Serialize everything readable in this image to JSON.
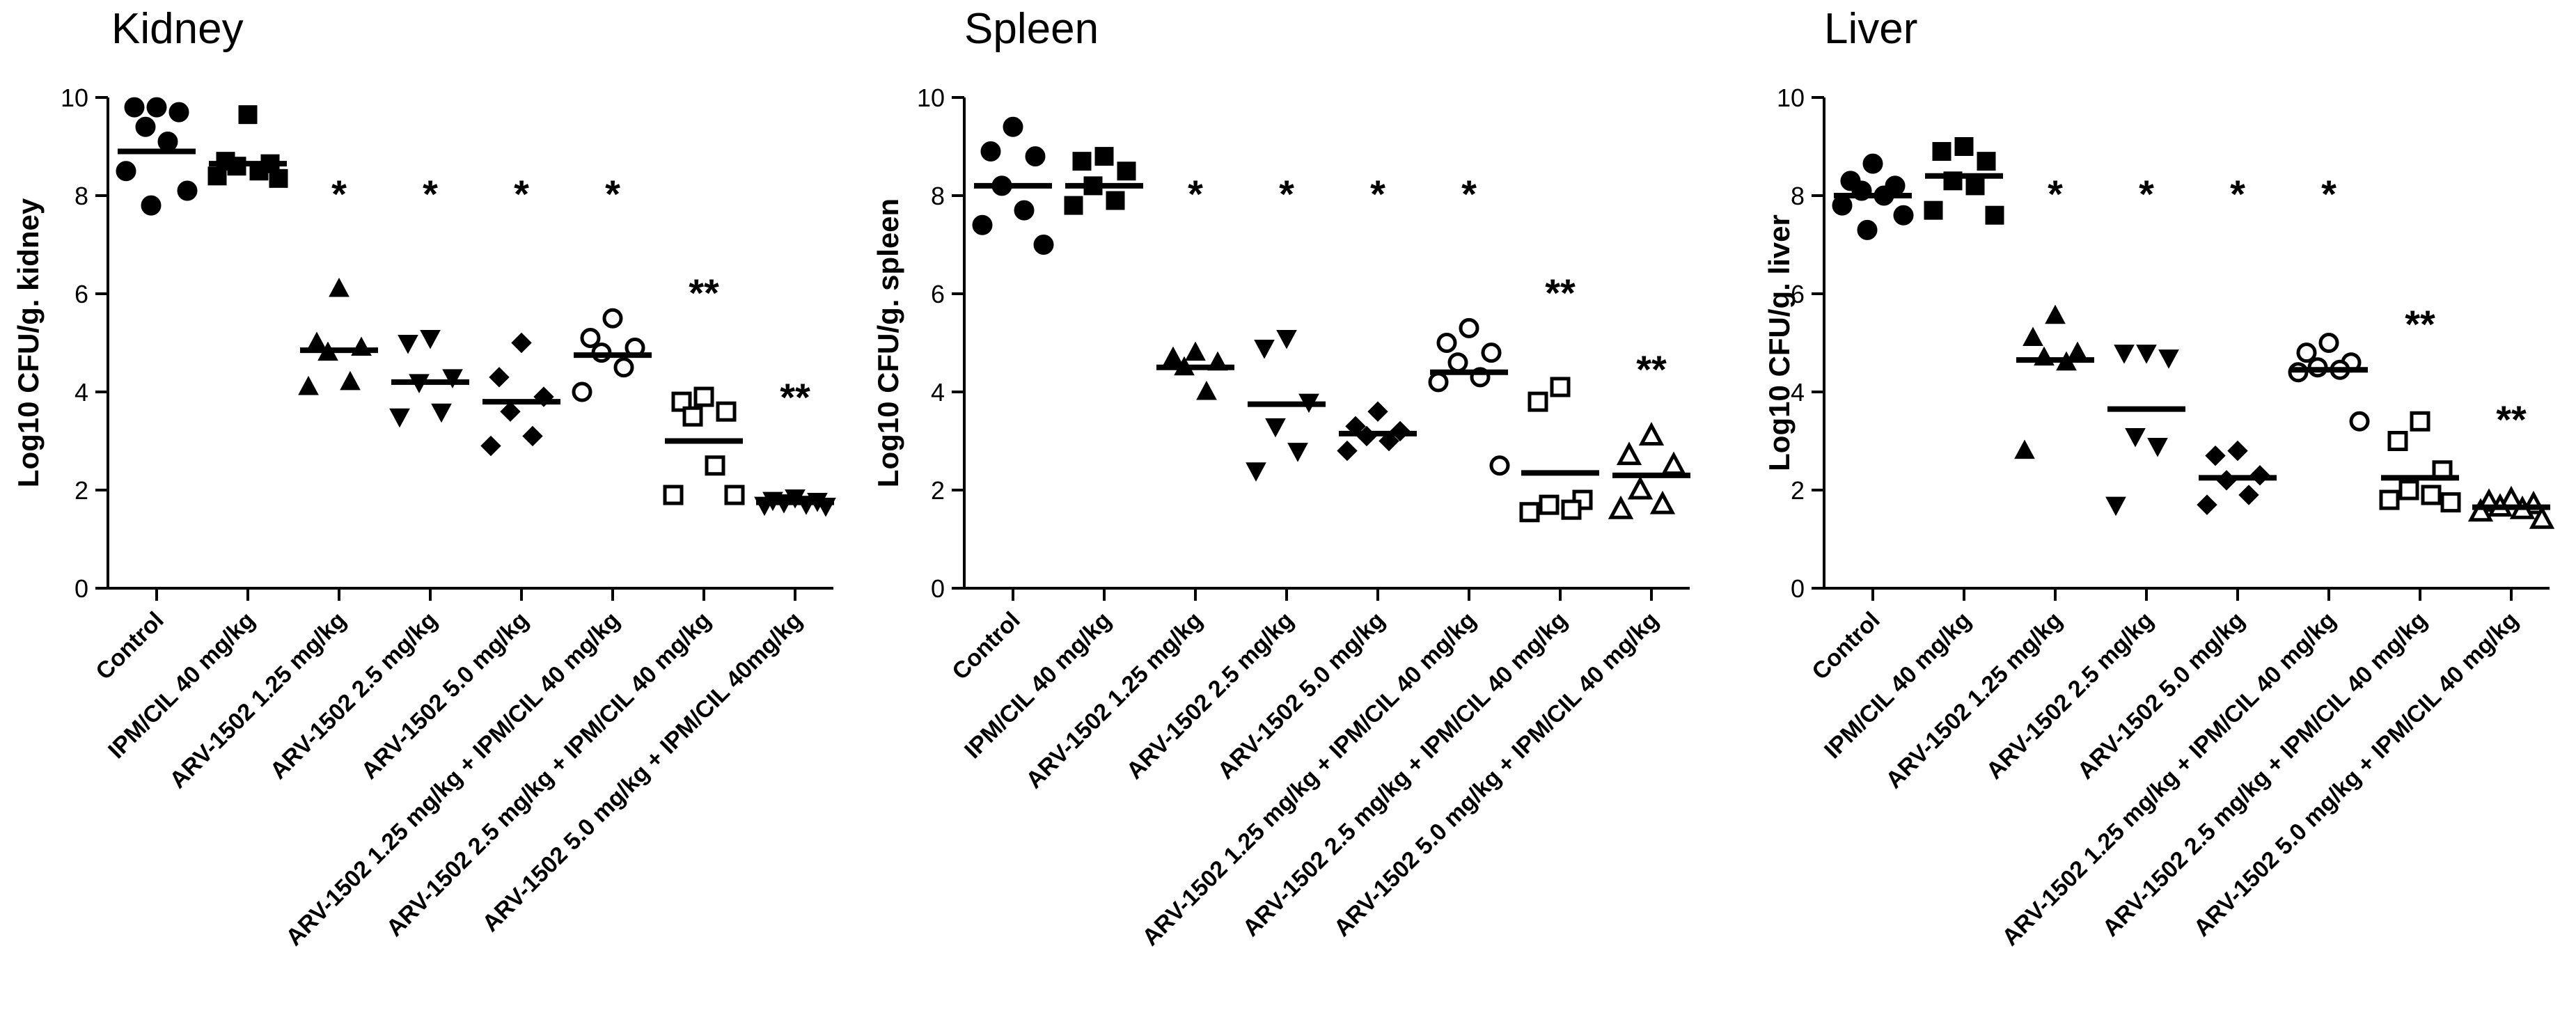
{
  "chart_data": [
    {
      "type": "scatter",
      "title": "Kidney",
      "ylabel": "Log10 CFU/g. kidney",
      "ylim": [
        0,
        10
      ],
      "yticks": [
        0,
        2,
        4,
        6,
        8,
        10
      ],
      "groups": [
        {
          "label": "Control",
          "marker": "circle-filled",
          "mean": 8.9,
          "values": [
            9.8,
            9.8,
            9.7,
            9.4,
            9.1,
            8.5,
            8.1,
            7.8
          ],
          "sig": ""
        },
        {
          "label": "IPM/CIL 40 mg/kg",
          "marker": "square-filled",
          "mean": 8.65,
          "values": [
            9.65,
            8.7,
            8.65,
            8.6,
            8.5,
            8.4,
            8.35
          ],
          "sig": ""
        },
        {
          "label": "ARV-1502 1.25 mg/kg",
          "marker": "triangle-up-filled",
          "mean": 4.85,
          "values": [
            6.1,
            5.0,
            4.9,
            4.8,
            4.2,
            4.1
          ],
          "sig": "*"
        },
        {
          "label": "ARV-1502 2.5 mg/kg",
          "marker": "triangle-down-filled",
          "mean": 4.2,
          "values": [
            5.1,
            5.0,
            4.3,
            4.2,
            3.6,
            3.5
          ],
          "sig": "*"
        },
        {
          "label": "ARV-1502 5.0 mg/kg",
          "marker": "diamond-filled",
          "mean": 3.8,
          "values": [
            5.0,
            4.3,
            3.9,
            3.6,
            3.1,
            2.9
          ],
          "sig": "*"
        },
        {
          "label": "ARV-1502 1.25 mg/kg + IPM/CIL 40 mg/kg",
          "marker": "circle-open",
          "mean": 4.75,
          "values": [
            5.5,
            5.1,
            4.9,
            4.8,
            4.5,
            4.0
          ],
          "sig": "*"
        },
        {
          "label": "ARV-1502 2.5 mg/kg + IPM/CIL 40 mg/kg",
          "marker": "square-open",
          "mean": 3.0,
          "values": [
            3.9,
            3.8,
            3.6,
            3.5,
            2.5,
            1.9,
            1.9
          ],
          "sig": "**"
        },
        {
          "label": "ARV-1502 5.0 mg/kg + IPM/CIL 40mg/kg",
          "marker": "triangle-down-filled",
          "mean": 1.75,
          "values": [
            1.85,
            1.8,
            1.78,
            1.75,
            1.72,
            1.7,
            1.68
          ],
          "sig": "**"
        }
      ]
    },
    {
      "type": "scatter",
      "title": "Spleen",
      "ylabel": "Log10 CFU/g. spleen",
      "ylim": [
        0,
        10
      ],
      "yticks": [
        0,
        2,
        4,
        6,
        8,
        10
      ],
      "groups": [
        {
          "label": "Control",
          "marker": "circle-filled",
          "mean": 8.2,
          "values": [
            9.4,
            8.9,
            8.8,
            8.2,
            7.7,
            7.4,
            7.0
          ],
          "sig": ""
        },
        {
          "label": "IPM/CIL 40 mg/kg",
          "marker": "square-filled",
          "mean": 8.2,
          "values": [
            8.8,
            8.7,
            8.5,
            8.2,
            7.9,
            7.8
          ],
          "sig": ""
        },
        {
          "label": "ARV-1502 1.25 mg/kg",
          "marker": "triangle-up-filled",
          "mean": 4.5,
          "values": [
            4.8,
            4.7,
            4.6,
            4.5,
            4.0
          ],
          "sig": "*"
        },
        {
          "label": "ARV-1502 2.5 mg/kg",
          "marker": "triangle-down-filled",
          "mean": 3.75,
          "values": [
            5.1,
            4.9,
            3.8,
            3.3,
            2.8,
            2.4
          ],
          "sig": "*"
        },
        {
          "label": "ARV-1502 5.0 mg/kg",
          "marker": "diamond-filled",
          "mean": 3.15,
          "values": [
            3.6,
            3.3,
            3.2,
            3.1,
            3.0,
            2.8
          ],
          "sig": "*"
        },
        {
          "label": "ARV-1502 1.25 mg/kg + IPM/CIL 40 mg/kg",
          "marker": "circle-open",
          "mean": 4.4,
          "values": [
            5.3,
            5.0,
            4.8,
            4.6,
            4.3,
            4.2,
            2.5
          ],
          "sig": "*"
        },
        {
          "label": "ARV-1502 2.5 mg/kg + IPM/CIL 40 mg/kg",
          "marker": "square-open",
          "mean": 2.35,
          "values": [
            4.1,
            3.8,
            1.8,
            1.7,
            1.6,
            1.55
          ],
          "sig": "**"
        },
        {
          "label": "ARV-1502 5.0 mg/kg + IPM/CIL 40 mg/kg",
          "marker": "triangle-up-open",
          "mean": 2.3,
          "values": [
            3.1,
            2.7,
            2.5,
            2.0,
            1.7,
            1.6
          ],
          "sig": "**"
        }
      ]
    },
    {
      "type": "scatter",
      "title": "Liver",
      "ylabel": "Log10 CFU/g. liver",
      "ylim": [
        0,
        10
      ],
      "yticks": [
        0,
        2,
        4,
        6,
        8,
        10
      ],
      "groups": [
        {
          "label": "Control",
          "marker": "circle-filled",
          "mean": 8.0,
          "values": [
            8.65,
            8.3,
            8.2,
            8.1,
            8.0,
            7.8,
            7.6,
            7.3
          ],
          "sig": ""
        },
        {
          "label": "IPM/CIL 40 mg/kg",
          "marker": "square-filled",
          "mean": 8.4,
          "values": [
            9.0,
            8.9,
            8.7,
            8.3,
            8.2,
            7.7,
            7.6
          ],
          "sig": ""
        },
        {
          "label": "ARV-1502 1.25 mg/kg",
          "marker": "triangle-up-filled",
          "mean": 4.65,
          "values": [
            5.55,
            5.1,
            4.8,
            4.7,
            4.6,
            2.8
          ],
          "sig": "*"
        },
        {
          "label": "ARV-1502 2.5 mg/kg",
          "marker": "triangle-down-filled",
          "mean": 3.65,
          "values": [
            4.8,
            4.8,
            4.7,
            3.1,
            2.9,
            1.7
          ],
          "sig": "*"
        },
        {
          "label": "ARV-1502 5.0 mg/kg",
          "marker": "diamond-filled",
          "mean": 2.25,
          "values": [
            2.8,
            2.7,
            2.3,
            2.2,
            1.9,
            1.7
          ],
          "sig": "*"
        },
        {
          "label": "ARV-1502 1.25 mg/kg + IPM/CIL 40 mg/kg",
          "marker": "circle-open",
          "mean": 4.45,
          "values": [
            5.0,
            4.8,
            4.6,
            4.5,
            4.45,
            4.4,
            3.4
          ],
          "sig": "*"
        },
        {
          "label": "ARV-1502 2.5 mg/kg + IPM/CIL 40 mg/kg",
          "marker": "square-open",
          "mean": 2.25,
          "values": [
            3.4,
            3.0,
            2.4,
            2.0,
            1.9,
            1.8,
            1.75
          ],
          "sig": "**"
        },
        {
          "label": "ARV-1502 5.0 mg/kg + IPM/CIL 40 mg/kg",
          "marker": "triangle-up-open",
          "mean": 1.65,
          "values": [
            1.8,
            1.75,
            1.7,
            1.65,
            1.6,
            1.55,
            1.4
          ],
          "sig": "**"
        }
      ]
    }
  ]
}
